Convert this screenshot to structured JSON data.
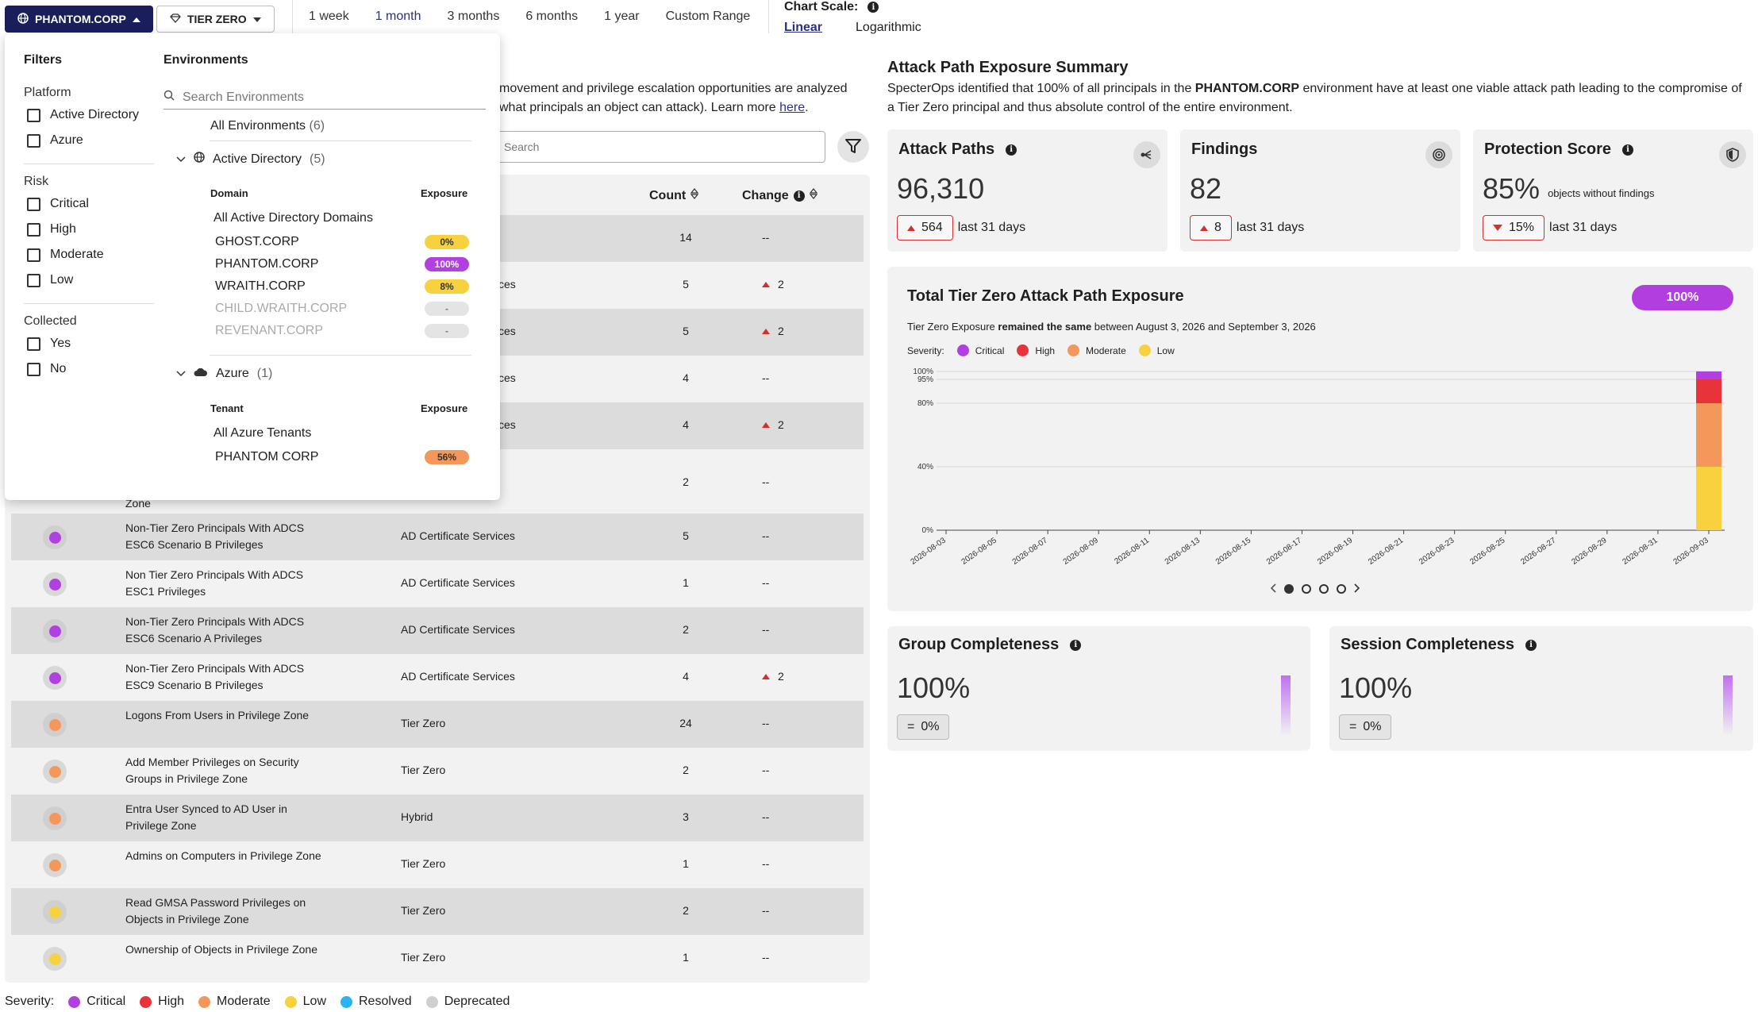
{
  "topbar": {
    "env_button": "PHANTOM.CORP",
    "tier_button": "TIER ZERO",
    "ranges": [
      "1 week",
      "1 month",
      "3 months",
      "6 months",
      "1 year",
      "Custom Range"
    ],
    "active_range": "1 month",
    "chart_scale_label": "Chart Scale:",
    "scale_linear": "Linear",
    "scale_log": "Logarithmic"
  },
  "intro": {
    "line1": "movement and privilege escalation opportunities are analyzed",
    "line2": "what principals an object can attack). Learn more ",
    "link": "here",
    "link_suffix": "."
  },
  "table": {
    "search_placeholder": "Search",
    "col_count": "Count",
    "col_change": "Change",
    "hidden_rows": [
      {
        "count": "14",
        "change": "--",
        "up": false
      },
      {
        "cat_tail": "ces",
        "count": "5",
        "change": "2",
        "up": true
      },
      {
        "cat_tail": "ces",
        "count": "5",
        "change": "2",
        "up": true
      },
      {
        "cat_tail": "ces",
        "count": "4",
        "change": "--",
        "up": false
      },
      {
        "cat_tail": "ces",
        "count": "4",
        "change": "2",
        "up": true
      },
      {
        "name_tail": "Zone",
        "count": "2",
        "change": "--",
        "up": false
      }
    ],
    "rows": [
      {
        "name": "Non-Tier Zero Principals With ADCS ESC6 Scenario B Privileges",
        "category": "AD Certificate Services",
        "count": "5",
        "change": "--",
        "up": false,
        "severity": "critical"
      },
      {
        "name": "Non Tier Zero Principals With ADCS ESC1 Privileges",
        "category": "AD Certificate Services",
        "count": "1",
        "change": "--",
        "up": false,
        "severity": "critical"
      },
      {
        "name": "Non-Tier Zero Principals With ADCS ESC6 Scenario A Privileges",
        "category": "AD Certificate Services",
        "count": "2",
        "change": "--",
        "up": false,
        "severity": "critical"
      },
      {
        "name": "Non-Tier Zero Principals With ADCS ESC9 Scenario B Privileges",
        "category": "AD Certificate Services",
        "count": "4",
        "change": "2",
        "up": true,
        "severity": "critical"
      },
      {
        "name": "Logons From Users in Privilege Zone",
        "category": "Tier Zero",
        "count": "24",
        "change": "--",
        "up": false,
        "severity": "moderate"
      },
      {
        "name": "Add Member Privileges on Security Groups in Privilege Zone",
        "category": "Tier Zero",
        "count": "2",
        "change": "--",
        "up": false,
        "severity": "moderate"
      },
      {
        "name": "Entra User Synced to AD User in Privilege Zone",
        "category": "Hybrid",
        "count": "3",
        "change": "--",
        "up": false,
        "severity": "moderate"
      },
      {
        "name": "Admins on Computers in Privilege Zone",
        "category": "Tier Zero",
        "count": "1",
        "change": "--",
        "up": false,
        "severity": "moderate"
      },
      {
        "name": "Read GMSA Password Privileges on Objects in Privilege Zone",
        "category": "Tier Zero",
        "count": "2",
        "change": "--",
        "up": false,
        "severity": "low"
      },
      {
        "name": "Ownership of Objects in Privilege Zone",
        "category": "Tier Zero",
        "count": "1",
        "change": "--",
        "up": false,
        "severity": "low"
      }
    ]
  },
  "severity_legend": {
    "label": "Severity:",
    "items": [
      {
        "name": "Critical",
        "color": "#b040e0"
      },
      {
        "name": "High",
        "color": "#e8333a"
      },
      {
        "name": "Moderate",
        "color": "#f4975a"
      },
      {
        "name": "Low",
        "color": "#f7d23e"
      },
      {
        "name": "Resolved",
        "color": "#2ab4f0"
      },
      {
        "name": "Deprecated",
        "color": "#cfcfcf"
      }
    ]
  },
  "dropdown": {
    "filters_title": "Filters",
    "platform_label": "Platform",
    "platform_options": [
      "Active Directory",
      "Azure"
    ],
    "risk_label": "Risk",
    "risk_options": [
      "Critical",
      "High",
      "Moderate",
      "Low"
    ],
    "collected_label": "Collected",
    "collected_options": [
      "Yes",
      "No"
    ],
    "env_title": "Environments",
    "env_search_placeholder": "Search Environments",
    "all_envs": "All Environments",
    "all_envs_count": "(6)",
    "ad_group": "Active Directory",
    "ad_count": "(5)",
    "domain_col": "Domain",
    "exposure_col": "Exposure",
    "all_ad_domains": "All Active Directory Domains",
    "domains": [
      {
        "name": "GHOST.CORP",
        "exposure": "0%",
        "bg": "#f7d23e",
        "fg": "#333",
        "disabled": false
      },
      {
        "name": "PHANTOM.CORP",
        "exposure": "100%",
        "bg": "#b040e0",
        "fg": "#fff",
        "disabled": false
      },
      {
        "name": "WRAITH.CORP",
        "exposure": "8%",
        "bg": "#f7d23e",
        "fg": "#333",
        "disabled": false
      },
      {
        "name": "CHILD.WRAITH.CORP",
        "exposure": "-",
        "bg": "#e4e4e4",
        "fg": "#777",
        "disabled": true
      },
      {
        "name": "REVENANT.CORP",
        "exposure": "-",
        "bg": "#e4e4e4",
        "fg": "#777",
        "disabled": true
      }
    ],
    "azure_group": "Azure",
    "azure_count": "(1)",
    "tenant_col": "Tenant",
    "all_azure_tenants": "All Azure Tenants",
    "tenants": [
      {
        "name": "PHANTOM CORP",
        "exposure": "56%",
        "bg": "#f4975a",
        "fg": "#333"
      }
    ]
  },
  "summary": {
    "title": "Attack Path Exposure Summary",
    "text_a": "SpecterOps identified that 100% of all principals in the ",
    "text_env": "PHANTOM.CORP",
    "text_b": " environment have at least one viable attack path leading to the compromise of a Tier Zero principal and thus absolute control of the entire environment."
  },
  "cards": {
    "attack_paths": {
      "title": "Attack Paths",
      "value": "96,310",
      "delta": "564",
      "period": "last 31 days"
    },
    "findings": {
      "title": "Findings",
      "value": "82",
      "delta": "8",
      "period": "last 31 days"
    },
    "protection": {
      "title": "Protection Score",
      "value": "85%",
      "sub": "objects without findings",
      "delta": "15%",
      "period": "last 31 days"
    }
  },
  "exposure_chart": {
    "title": "Total Tier Zero Attack Path Exposure",
    "pill": "100%",
    "desc_a": "Tier Zero Exposure ",
    "desc_bold": "remained the same",
    "desc_b": " between August 3, 2026 and September 3, 2026",
    "legend_label": "Severity:"
  },
  "chart_data": {
    "type": "bar",
    "stacked": true,
    "x": [
      "2026-08-03",
      "2026-08-05",
      "2026-08-07",
      "2026-08-09",
      "2026-08-11",
      "2026-08-13",
      "2026-08-15",
      "2026-08-17",
      "2026-08-19",
      "2026-08-21",
      "2026-08-23",
      "2026-08-25",
      "2026-08-27",
      "2026-08-29",
      "2026-08-31",
      "2026-09-03"
    ],
    "y_ticks": [
      "0%",
      "40%",
      "80%",
      "95%",
      "100%"
    ],
    "ylim": [
      0,
      100
    ],
    "series": [
      {
        "name": "Low",
        "color": "#f7d23e",
        "points": [
          {
            "x": "2026-09-03",
            "y": 40
          }
        ]
      },
      {
        "name": "Moderate",
        "color": "#f4975a",
        "points": [
          {
            "x": "2026-09-03",
            "y": 40
          }
        ]
      },
      {
        "name": "High",
        "color": "#e8333a",
        "points": [
          {
            "x": "2026-09-03",
            "y": 15
          }
        ]
      },
      {
        "name": "Critical",
        "color": "#b040e0",
        "points": [
          {
            "x": "2026-09-03",
            "y": 5
          }
        ]
      }
    ],
    "legend": [
      "Critical",
      "High",
      "Moderate",
      "Low"
    ]
  },
  "completeness": {
    "group": {
      "title": "Group Completeness",
      "value": "100%",
      "delta": "0%"
    },
    "session": {
      "title": "Session Completeness",
      "value": "100%",
      "delta": "0%"
    }
  }
}
